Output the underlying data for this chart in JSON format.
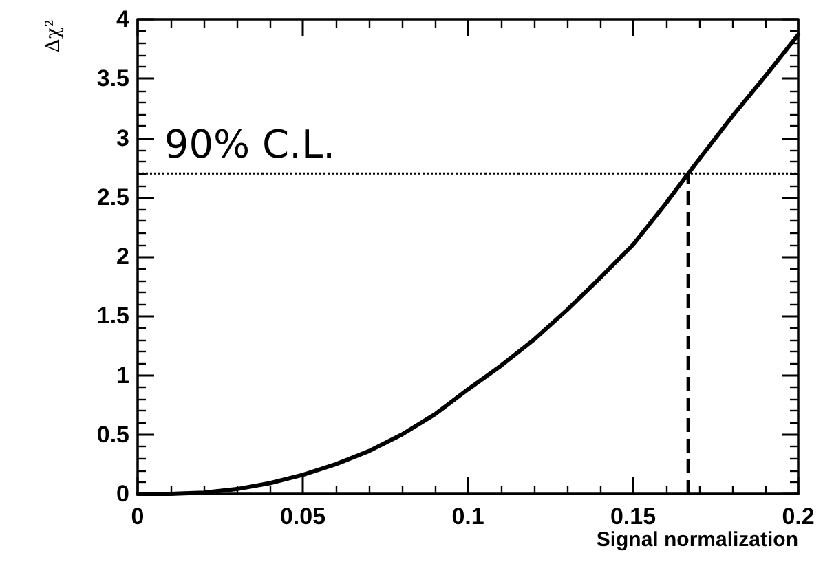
{
  "chart_data": {
    "type": "line",
    "xlabel": "Signal normalization",
    "ylabel": "Δχ²",
    "x": [
      0,
      0.01,
      0.02,
      0.03,
      0.04,
      0.05,
      0.06,
      0.07,
      0.08,
      0.09,
      0.1,
      0.11,
      0.12,
      0.13,
      0.14,
      0.15,
      0.16,
      0.1667,
      0.17,
      0.18,
      0.19,
      0.2
    ],
    "series": [
      {
        "color": "#000000",
        "values": [
          0,
          0,
          0.01,
          0.04,
          0.09,
          0.16,
          0.25,
          0.36,
          0.5,
          0.67,
          0.88,
          1.08,
          1.3,
          1.55,
          1.82,
          2.1,
          2.45,
          2.7,
          2.82,
          3.18,
          3.52,
          3.87
        ]
      }
    ],
    "xlim": [
      0,
      0.2
    ],
    "xticks": [
      0,
      0.05,
      0.1,
      0.15,
      0.2
    ],
    "ylim": [
      0,
      4
    ],
    "yticks": [
      0,
      0.5,
      1,
      1.5,
      2,
      2.5,
      3,
      3.5,
      4
    ],
    "ref_lines": [
      {
        "axis": "y",
        "value": 2.7,
        "label": "90% C.L.",
        "line_style": "dotted",
        "color": "#000000"
      },
      {
        "axis": "x",
        "value": 0.1667,
        "label": null,
        "line_style": "dashed",
        "color": "#000000"
      }
    ],
    "grid": false,
    "marker": "none",
    "line_style": "solid"
  }
}
